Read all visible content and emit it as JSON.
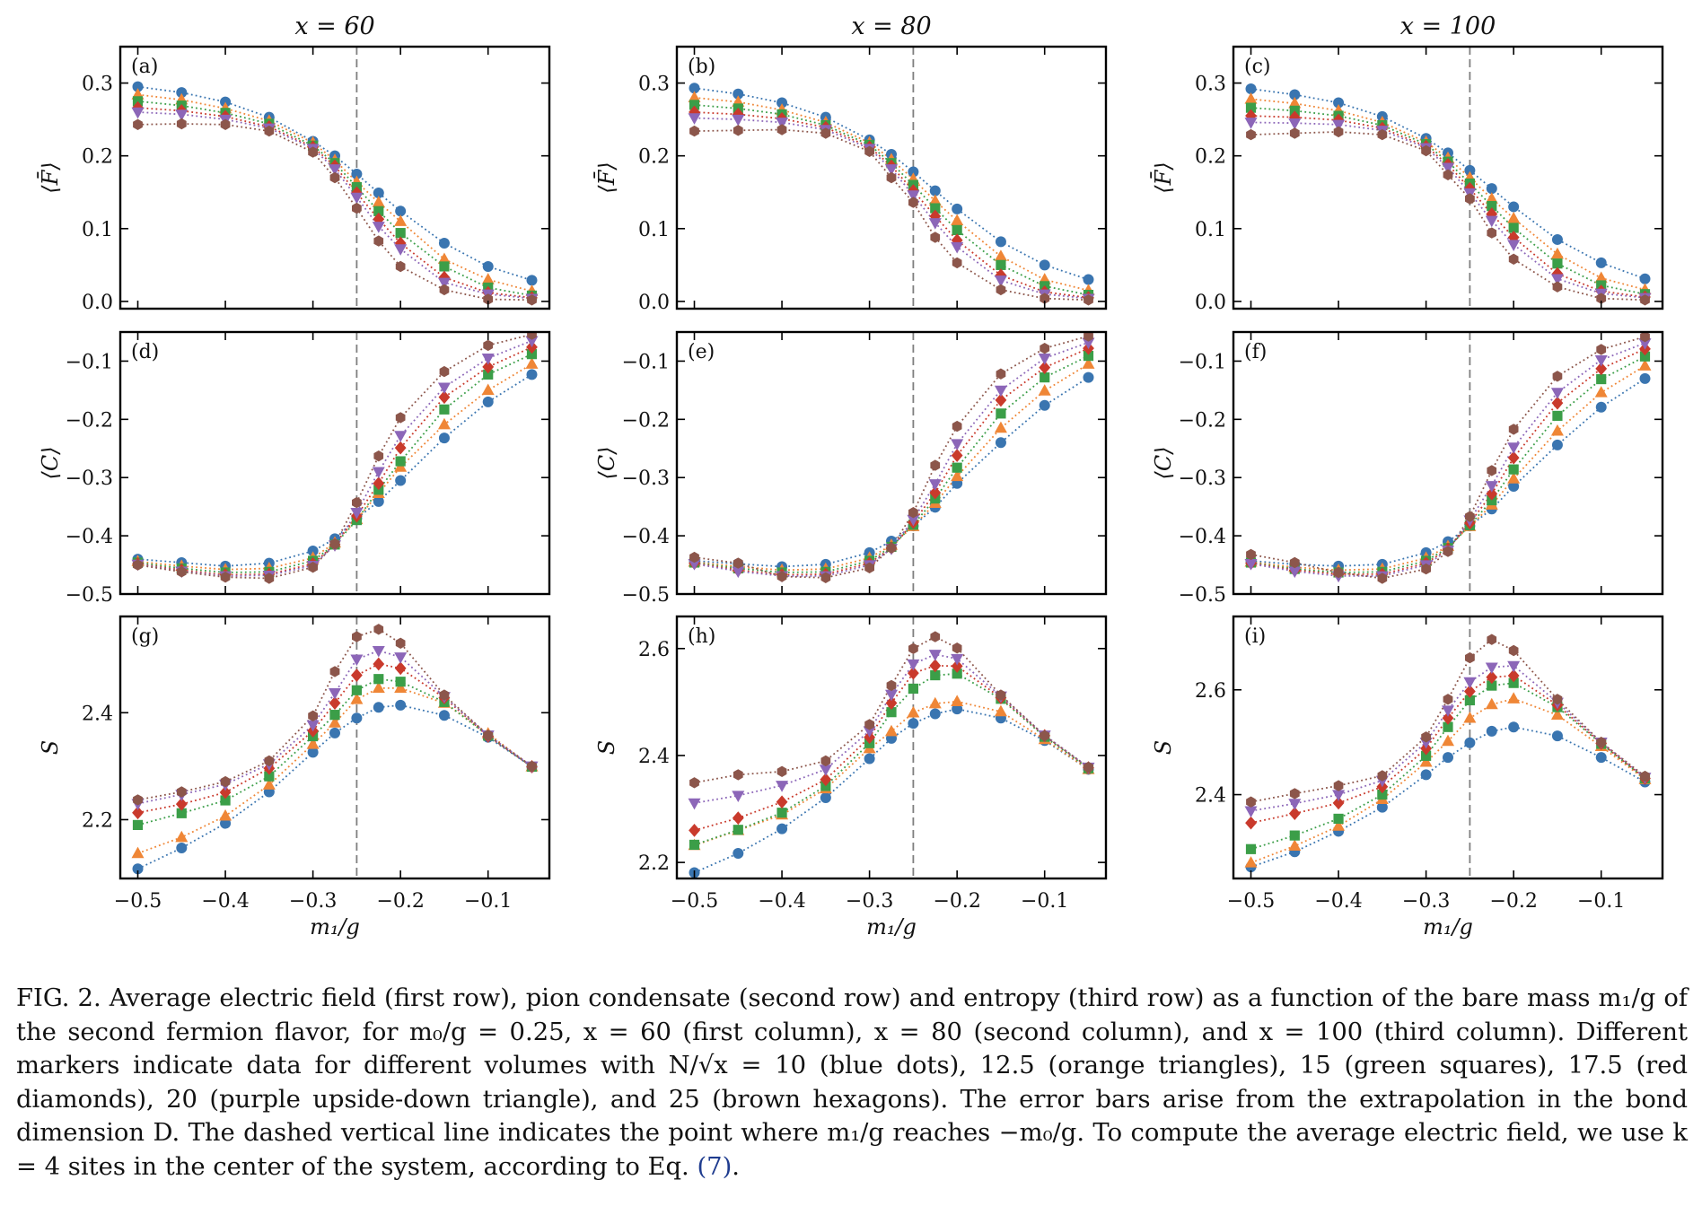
{
  "figure": {
    "column_titles": [
      "x = 60",
      "x = 80",
      "x = 100"
    ],
    "x_label": "m₁/g",
    "y_labels": [
      "⟨F̄⟩",
      "⟨C⟩",
      "S"
    ],
    "panel_letters": [
      "(a)",
      "(b)",
      "(c)",
      "(d)",
      "(e)",
      "(f)",
      "(g)",
      "(h)",
      "(i)"
    ],
    "dashed_line_at": -0.25,
    "colors": {
      "blue": "#3a75b0",
      "orange": "#ef8636",
      "green": "#3b9e48",
      "red": "#c93a2c",
      "purple": "#8c66b8",
      "brown": "#8c564b"
    }
  },
  "caption": {
    "label": "FIG. 2.",
    "text": "Average electric field (first row), pion condensate (second row) and entropy (third row) as a function of the bare mass m₁/g of the second fermion flavor, for m₀/g = 0.25, x = 60 (first column), x = 80 (second column), and x = 100 (third column). Different markers indicate data for different volumes with N/√x = 10 (blue dots), 12.5 (orange triangles), 15 (green squares), 17.5 (red diamonds), 20 (purple upside-down triangle), and 25 (brown hexagons). The error bars arise from the extrapolation in the bond dimension D. The dashed vertical line indicates the point where m₁/g reaches −m₀/g. To compute the average electric field, we use k = 4 sites in the center of the system, according to Eq. ",
    "eq_ref": "(7)",
    "end": "."
  },
  "chart_data": {
    "type": "scatter",
    "x": [
      -0.5,
      -0.45,
      -0.4,
      -0.35,
      -0.3,
      -0.275,
      -0.25,
      -0.225,
      -0.2,
      -0.15,
      -0.1,
      -0.05
    ],
    "series_legend": [
      "N/√x = 10",
      "12.5",
      "15",
      "17.5",
      "20",
      "25"
    ],
    "series_markers": [
      "circle",
      "triangle-up",
      "square",
      "diamond",
      "triangle-down",
      "hexagon"
    ],
    "series_colors": [
      "#3a75b0",
      "#ef8636",
      "#3b9e48",
      "#c93a2c",
      "#8c66b8",
      "#8c564b"
    ],
    "rows": [
      {
        "ylabel": "⟨F̄⟩",
        "ylim": [
          -0.01,
          0.35
        ],
        "yticks": [
          0.0,
          0.1,
          0.2,
          0.3
        ],
        "ytick_labels": [
          "0.0",
          "0.1",
          "0.2",
          "0.3"
        ]
      },
      {
        "ylabel": "⟨C⟩",
        "ylim": [
          -0.5,
          -0.05
        ],
        "yticks": [
          -0.5,
          -0.4,
          -0.3,
          -0.2,
          -0.1
        ],
        "ytick_labels": [
          "−0.5",
          "−0.4",
          "−0.3",
          "−0.2",
          "−0.1"
        ]
      },
      {
        "ylabel": "S",
        "ylim": "per panel"
      }
    ],
    "xticks": [
      -0.5,
      -0.4,
      -0.3,
      -0.2,
      -0.1
    ],
    "xtick_labels": [
      "−0.5",
      "−0.4",
      "−0.3",
      "−0.2",
      "−0.1"
    ],
    "xlim": [
      -0.52,
      -0.03
    ],
    "panels": [
      {
        "letter": "(a)",
        "title": "x = 60",
        "series": [
          [
            0.295,
            0.287,
            0.274,
            0.253,
            0.22,
            0.2,
            0.175,
            0.149,
            0.124,
            0.08,
            0.048,
            0.029
          ],
          [
            0.284,
            0.277,
            0.265,
            0.248,
            0.218,
            0.194,
            0.164,
            0.136,
            0.11,
            0.058,
            0.03,
            0.014
          ],
          [
            0.275,
            0.269,
            0.259,
            0.244,
            0.214,
            0.19,
            0.157,
            0.124,
            0.094,
            0.048,
            0.019,
            0.008
          ],
          [
            0.266,
            0.262,
            0.254,
            0.24,
            0.212,
            0.186,
            0.149,
            0.113,
            0.08,
            0.033,
            0.012,
            0.005
          ],
          [
            0.26,
            0.257,
            0.25,
            0.238,
            0.21,
            0.182,
            0.143,
            0.103,
            0.072,
            0.026,
            0.01,
            0.004
          ],
          [
            0.243,
            0.244,
            0.243,
            0.234,
            0.205,
            0.17,
            0.128,
            0.083,
            0.048,
            0.016,
            0.003,
            0.002
          ]
        ]
      },
      {
        "letter": "(b)",
        "title": "x = 80",
        "series": [
          [
            0.293,
            0.285,
            0.273,
            0.253,
            0.222,
            0.202,
            0.178,
            0.152,
            0.127,
            0.082,
            0.05,
            0.03
          ],
          [
            0.28,
            0.274,
            0.263,
            0.246,
            0.218,
            0.195,
            0.168,
            0.138,
            0.111,
            0.062,
            0.03,
            0.015
          ],
          [
            0.27,
            0.265,
            0.257,
            0.242,
            0.215,
            0.19,
            0.16,
            0.128,
            0.098,
            0.05,
            0.021,
            0.009
          ],
          [
            0.26,
            0.257,
            0.251,
            0.239,
            0.212,
            0.186,
            0.152,
            0.117,
            0.084,
            0.036,
            0.013,
            0.005
          ],
          [
            0.252,
            0.25,
            0.246,
            0.236,
            0.21,
            0.182,
            0.146,
            0.108,
            0.075,
            0.029,
            0.01,
            0.004
          ],
          [
            0.234,
            0.235,
            0.236,
            0.231,
            0.206,
            0.17,
            0.136,
            0.088,
            0.053,
            0.016,
            0.004,
            0.002
          ]
        ]
      },
      {
        "letter": "(c)",
        "title": "x = 100",
        "series": [
          [
            0.292,
            0.284,
            0.273,
            0.254,
            0.224,
            0.204,
            0.18,
            0.155,
            0.13,
            0.085,
            0.053,
            0.031
          ],
          [
            0.278,
            0.272,
            0.262,
            0.246,
            0.219,
            0.197,
            0.17,
            0.141,
            0.114,
            0.065,
            0.032,
            0.016
          ],
          [
            0.266,
            0.262,
            0.255,
            0.242,
            0.216,
            0.192,
            0.162,
            0.131,
            0.101,
            0.052,
            0.022,
            0.01
          ],
          [
            0.255,
            0.253,
            0.249,
            0.238,
            0.213,
            0.188,
            0.155,
            0.12,
            0.088,
            0.038,
            0.014,
            0.006
          ],
          [
            0.246,
            0.245,
            0.243,
            0.235,
            0.211,
            0.184,
            0.149,
            0.111,
            0.078,
            0.031,
            0.011,
            0.005
          ],
          [
            0.229,
            0.231,
            0.233,
            0.229,
            0.207,
            0.174,
            0.141,
            0.094,
            0.058,
            0.02,
            0.004,
            0.002
          ]
        ]
      },
      {
        "letter": "(d)",
        "title": "x = 60",
        "series": [
          [
            -0.44,
            -0.446,
            -0.452,
            -0.447,
            -0.426,
            -0.405,
            -0.37,
            -0.341,
            -0.305,
            -0.232,
            -0.17,
            -0.123
          ],
          [
            -0.444,
            -0.452,
            -0.458,
            -0.456,
            -0.438,
            -0.412,
            -0.372,
            -0.327,
            -0.282,
            -0.209,
            -0.15,
            -0.105
          ],
          [
            -0.446,
            -0.456,
            -0.463,
            -0.462,
            -0.443,
            -0.415,
            -0.373,
            -0.321,
            -0.272,
            -0.183,
            -0.123,
            -0.088
          ],
          [
            -0.448,
            -0.459,
            -0.467,
            -0.466,
            -0.448,
            -0.415,
            -0.366,
            -0.31,
            -0.249,
            -0.162,
            -0.11,
            -0.076
          ],
          [
            -0.449,
            -0.461,
            -0.469,
            -0.468,
            -0.451,
            -0.416,
            -0.36,
            -0.29,
            -0.228,
            -0.145,
            -0.095,
            -0.065
          ],
          [
            -0.45,
            -0.462,
            -0.471,
            -0.473,
            -0.454,
            -0.414,
            -0.343,
            -0.263,
            -0.197,
            -0.118,
            -0.073,
            -0.054
          ]
        ]
      },
      {
        "letter": "(e)",
        "title": "x = 80",
        "series": [
          [
            -0.443,
            -0.448,
            -0.453,
            -0.449,
            -0.429,
            -0.409,
            -0.383,
            -0.351,
            -0.31,
            -0.24,
            -0.176,
            -0.128
          ],
          [
            -0.445,
            -0.453,
            -0.459,
            -0.457,
            -0.438,
            -0.416,
            -0.384,
            -0.344,
            -0.298,
            -0.215,
            -0.151,
            -0.105
          ],
          [
            -0.446,
            -0.456,
            -0.463,
            -0.462,
            -0.443,
            -0.419,
            -0.381,
            -0.336,
            -0.283,
            -0.19,
            -0.128,
            -0.091
          ],
          [
            -0.447,
            -0.459,
            -0.467,
            -0.466,
            -0.447,
            -0.421,
            -0.377,
            -0.326,
            -0.262,
            -0.167,
            -0.111,
            -0.078
          ],
          [
            -0.448,
            -0.461,
            -0.469,
            -0.469,
            -0.45,
            -0.422,
            -0.372,
            -0.311,
            -0.242,
            -0.15,
            -0.095,
            -0.068
          ],
          [
            -0.437,
            -0.447,
            -0.47,
            -0.472,
            -0.455,
            -0.421,
            -0.36,
            -0.279,
            -0.212,
            -0.122,
            -0.078,
            -0.057
          ]
        ]
      },
      {
        "letter": "(f)",
        "title": "x = 100",
        "series": [
          [
            -0.443,
            -0.449,
            -0.452,
            -0.449,
            -0.429,
            -0.41,
            -0.383,
            -0.354,
            -0.315,
            -0.244,
            -0.179,
            -0.13
          ],
          [
            -0.445,
            -0.454,
            -0.459,
            -0.457,
            -0.438,
            -0.418,
            -0.384,
            -0.347,
            -0.302,
            -0.22,
            -0.154,
            -0.108
          ],
          [
            -0.446,
            -0.457,
            -0.463,
            -0.462,
            -0.443,
            -0.421,
            -0.382,
            -0.339,
            -0.286,
            -0.194,
            -0.131,
            -0.092
          ],
          [
            -0.447,
            -0.459,
            -0.466,
            -0.466,
            -0.447,
            -0.423,
            -0.378,
            -0.328,
            -0.266,
            -0.172,
            -0.113,
            -0.079
          ],
          [
            -0.448,
            -0.461,
            -0.469,
            -0.469,
            -0.45,
            -0.425,
            -0.373,
            -0.314,
            -0.248,
            -0.154,
            -0.098,
            -0.069
          ],
          [
            -0.432,
            -0.446,
            -0.463,
            -0.473,
            -0.457,
            -0.427,
            -0.367,
            -0.288,
            -0.217,
            -0.126,
            -0.08,
            -0.058
          ]
        ]
      },
      {
        "letter": "(g)",
        "title": "x = 60",
        "ylim": [
          2.09,
          2.58
        ],
        "yticks": [
          2.2,
          2.4
        ],
        "ytick_labels": [
          "2.2",
          "2.4"
        ],
        "series": [
          [
            2.108,
            2.147,
            2.193,
            2.252,
            2.326,
            2.362,
            2.39,
            2.41,
            2.414,
            2.395,
            2.354,
            2.299
          ],
          [
            2.137,
            2.167,
            2.207,
            2.265,
            2.341,
            2.381,
            2.425,
            2.446,
            2.446,
            2.418,
            2.361,
            2.299
          ],
          [
            2.19,
            2.212,
            2.236,
            2.281,
            2.356,
            2.396,
            2.442,
            2.463,
            2.458,
            2.42,
            2.357,
            2.299
          ],
          [
            2.213,
            2.229,
            2.251,
            2.296,
            2.366,
            2.418,
            2.47,
            2.491,
            2.483,
            2.428,
            2.356,
            2.299
          ],
          [
            2.23,
            2.247,
            2.266,
            2.304,
            2.377,
            2.437,
            2.5,
            2.516,
            2.504,
            2.43,
            2.358,
            2.3
          ],
          [
            2.237,
            2.252,
            2.271,
            2.31,
            2.394,
            2.477,
            2.542,
            2.556,
            2.53,
            2.433,
            2.358,
            2.3
          ]
        ]
      },
      {
        "letter": "(h)",
        "title": "x = 80",
        "ylim": [
          2.17,
          2.66
        ],
        "yticks": [
          2.2,
          2.4,
          2.6
        ],
        "ytick_labels": [
          "2.2",
          "2.4",
          "2.6"
        ],
        "series": [
          [
            2.181,
            2.217,
            2.263,
            2.321,
            2.394,
            2.432,
            2.46,
            2.478,
            2.487,
            2.47,
            2.428,
            2.374
          ],
          [
            2.232,
            2.26,
            2.289,
            2.338,
            2.413,
            2.445,
            2.48,
            2.497,
            2.501,
            2.482,
            2.43,
            2.374
          ],
          [
            2.233,
            2.261,
            2.293,
            2.343,
            2.423,
            2.481,
            2.525,
            2.55,
            2.553,
            2.506,
            2.435,
            2.376
          ],
          [
            2.26,
            2.283,
            2.313,
            2.355,
            2.434,
            2.498,
            2.554,
            2.568,
            2.567,
            2.508,
            2.437,
            2.377
          ],
          [
            2.311,
            2.325,
            2.344,
            2.374,
            2.446,
            2.514,
            2.571,
            2.589,
            2.581,
            2.511,
            2.438,
            2.378
          ],
          [
            2.349,
            2.364,
            2.37,
            2.39,
            2.458,
            2.531,
            2.6,
            2.622,
            2.601,
            2.513,
            2.437,
            2.378
          ]
        ]
      },
      {
        "letter": "(i)",
        "title": "x = 100",
        "ylim": [
          2.24,
          2.74
        ],
        "yticks": [
          2.4,
          2.6
        ],
        "ytick_labels": [
          "2.4",
          "2.6"
        ],
        "series": [
          [
            2.262,
            2.291,
            2.33,
            2.376,
            2.438,
            2.471,
            2.499,
            2.521,
            2.529,
            2.512,
            2.471,
            2.424
          ],
          [
            2.27,
            2.302,
            2.34,
            2.391,
            2.462,
            2.502,
            2.546,
            2.572,
            2.583,
            2.552,
            2.492,
            2.429
          ],
          [
            2.296,
            2.322,
            2.354,
            2.4,
            2.474,
            2.529,
            2.58,
            2.608,
            2.613,
            2.567,
            2.497,
            2.431
          ],
          [
            2.346,
            2.364,
            2.384,
            2.415,
            2.488,
            2.546,
            2.597,
            2.624,
            2.627,
            2.571,
            2.498,
            2.431
          ],
          [
            2.369,
            2.383,
            2.4,
            2.427,
            2.5,
            2.561,
            2.615,
            2.643,
            2.646,
            2.576,
            2.5,
            2.433
          ],
          [
            2.386,
            2.402,
            2.417,
            2.436,
            2.51,
            2.582,
            2.661,
            2.696,
            2.675,
            2.582,
            2.5,
            2.435
          ]
        ]
      }
    ]
  }
}
